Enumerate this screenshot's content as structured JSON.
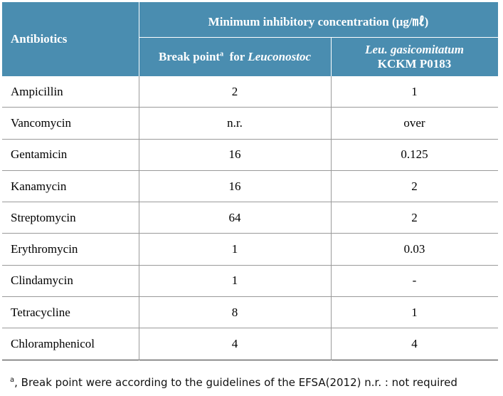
{
  "table": {
    "header": {
      "antibiotics": "Antibiotics",
      "mic": "Minimum  inhibitory  concentration (µg/㎖)",
      "break_point": "Break point",
      "break_point_sup": "a",
      "for": "for",
      "genus": "Leuconostoc",
      "strain_species": "Leu. gasicomitatum",
      "strain_id": "KCKM  P0183"
    },
    "rows": [
      [
        "Ampicillin",
        "2",
        "1"
      ],
      [
        "Vancomycin",
        "n.r.",
        "over"
      ],
      [
        "Gentamicin",
        "16",
        "0.125"
      ],
      [
        "Kanamycin",
        "16",
        "2"
      ],
      [
        "Streptomycin",
        "64",
        "2"
      ],
      [
        "Erythromycin",
        "1",
        "0.03"
      ],
      [
        "Clindamycin",
        "1",
        "-"
      ],
      [
        "Tetracycline",
        "8",
        "1"
      ],
      [
        "Chloramphenicol",
        "4",
        "4"
      ]
    ]
  },
  "footnote": {
    "marker": "a",
    "text": ", Break point were according to the guidelines of the EFSA(2012)  n.r. : not required"
  }
}
